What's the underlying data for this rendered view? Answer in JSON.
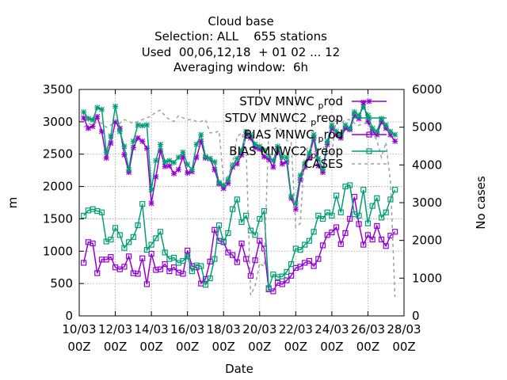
{
  "chart_data": {
    "type": "line",
    "title_lines": [
      "Cloud base",
      "Selection: ALL    655 stations",
      "Used  00,06,12,18  + 01 02 ... 12",
      "Averaging window:  6h"
    ],
    "xlabel": "Date",
    "ylabel": "m",
    "y2label": "No cases",
    "ylim": [
      0,
      3500
    ],
    "y2lim": [
      0,
      6000
    ],
    "yticks": [
      "0",
      "500",
      "1000",
      "1500",
      "2000",
      "2500",
      "3000",
      "3500"
    ],
    "y2ticks": [
      "0",
      "1000",
      "2000",
      "3000",
      "4000",
      "5000",
      "6000"
    ],
    "xlim": [
      0,
      36
    ],
    "xticks": [
      {
        "line1": "10/03",
        "line2": "00Z"
      },
      {
        "line1": "12/03",
        "line2": "00Z"
      },
      {
        "line1": "14/03",
        "line2": "00Z"
      },
      {
        "line1": "16/03",
        "line2": "00Z"
      },
      {
        "line1": "18/03",
        "line2": "00Z"
      },
      {
        "line1": "20/03",
        "line2": "00Z"
      },
      {
        "line1": "22/03",
        "line2": "00Z"
      },
      {
        "line1": "24/03",
        "line2": "00Z"
      },
      {
        "line1": "26/03",
        "line2": "00Z"
      },
      {
        "line1": "28/03",
        "line2": "00Z"
      }
    ],
    "x": [
      0.5,
      1,
      1.5,
      2,
      2.5,
      3,
      3.5,
      4,
      4.5,
      5,
      5.5,
      6,
      6.5,
      7,
      7.5,
      8,
      8.5,
      9,
      9.5,
      10,
      10.5,
      11,
      11.5,
      12,
      12.5,
      13,
      13.5,
      14,
      14.5,
      15,
      15.5,
      16,
      16.5,
      17,
      17.5,
      18,
      18.5,
      19,
      19.5,
      20,
      20.5,
      21,
      21.5,
      22,
      22.5,
      23,
      23.5,
      24,
      24.5,
      25,
      25.5,
      26,
      26.5,
      27,
      27.5,
      28,
      28.5,
      29,
      29.5,
      30,
      30.5,
      31,
      31.5,
      32,
      32.5,
      33,
      33.5,
      34,
      34.5,
      35
    ],
    "series": [
      {
        "name": "STDV MNWC",
        "sub": "p",
        "suffix": "rod",
        "color": "#9400d3",
        "marker": "star",
        "axis": "y1",
        "values": [
          3060,
          2900,
          2930,
          3080,
          2850,
          2440,
          2670,
          3000,
          2900,
          2490,
          2220,
          2600,
          2750,
          2700,
          2590,
          1740,
          2150,
          2550,
          2310,
          2320,
          2200,
          2260,
          2460,
          2210,
          2230,
          2450,
          2700,
          2440,
          2430,
          2260,
          2040,
          1970,
          2050,
          2300,
          2350,
          2490,
          2800,
          2750,
          2600,
          2580,
          2460,
          2420,
          2300,
          2580,
          2350,
          2380,
          1820,
          1650,
          2100,
          2300,
          2450,
          2750,
          2320,
          2220,
          2650,
          2900,
          2800,
          2750,
          2900,
          2880,
          3100,
          3050,
          3300,
          3000,
          2850,
          2800,
          3000,
          2900,
          2800,
          2700
        ]
      },
      {
        "name": "STDV MNWC2",
        "sub": "p",
        "suffix": "reop",
        "color": "#009e73",
        "marker": "star",
        "axis": "y1",
        "values": [
          3150,
          3050,
          3030,
          3220,
          3190,
          2530,
          2780,
          3240,
          2850,
          2620,
          2260,
          2700,
          2950,
          2940,
          2950,
          1950,
          2400,
          2650,
          2380,
          2400,
          2370,
          2450,
          2530,
          2340,
          2260,
          2650,
          2800,
          2460,
          2430,
          2380,
          2060,
          2020,
          2100,
          2330,
          2430,
          2560,
          2850,
          2800,
          2650,
          2620,
          2560,
          2470,
          2400,
          2620,
          2450,
          2450,
          1850,
          1740,
          2170,
          2350,
          2520,
          2800,
          2430,
          2270,
          2700,
          2950,
          2850,
          2800,
          2950,
          2900,
          3150,
          3100,
          3230,
          3100,
          2900,
          2850,
          3050,
          2950,
          2850,
          2800
        ]
      },
      {
        "name": "BIAS MNWC",
        "sub": "p",
        "suffix": "rod",
        "color": "#9400d3",
        "marker": "square",
        "axis": "y1",
        "values": [
          820,
          1140,
          1120,
          660,
          870,
          870,
          910,
          750,
          720,
          760,
          920,
          660,
          650,
          890,
          490,
          960,
          710,
          720,
          800,
          690,
          750,
          670,
          650,
          1010,
          770,
          750,
          500,
          570,
          840,
          1330,
          1160,
          1140,
          980,
          940,
          830,
          1120,
          880,
          620,
          860,
          1160,
          1040,
          410,
          380,
          510,
          490,
          550,
          620,
          740,
          760,
          820,
          850,
          770,
          880,
          1090,
          1250,
          1290,
          1370,
          1110,
          1280,
          1500,
          1840,
          1420,
          1100,
          1250,
          1180,
          1390,
          1180,
          1080,
          1240,
          1300
        ]
      },
      {
        "name": "BIAS MNWC2",
        "sub": "p",
        "suffix": "reop",
        "color": "#009e73",
        "marker": "square",
        "axis": "y1",
        "values": [
          1550,
          1630,
          1650,
          1620,
          1600,
          1150,
          1180,
          1360,
          1250,
          1050,
          1140,
          1220,
          1400,
          1730,
          1020,
          1100,
          1200,
          1300,
          980,
          880,
          900,
          820,
          850,
          920,
          690,
          780,
          770,
          480,
          580,
          880,
          1400,
          1150,
          1280,
          1650,
          1800,
          1450,
          1550,
          1320,
          1250,
          1500,
          1620,
          430,
          640,
          600,
          610,
          680,
          800,
          1040,
          1020,
          1100,
          1160,
          1300,
          1550,
          1500,
          1600,
          1550,
          1860,
          1600,
          2000,
          2020,
          1570,
          1550,
          1950,
          1430,
          1700,
          1820,
          1520,
          1600,
          1800,
          1950
        ]
      },
      {
        "name": "CASES",
        "sub": "",
        "suffix": "",
        "color": "#a0a0a0",
        "marker": "none",
        "axis": "y2",
        "dashed": true,
        "values": [
          5000,
          5100,
          5050,
          5150,
          5100,
          5000,
          5050,
          5200,
          5100,
          5200,
          5150,
          5100,
          5150,
          5200,
          5250,
          5300,
          5400,
          5450,
          5300,
          5200,
          5150,
          5300,
          5250,
          5200,
          5200,
          5150,
          5150,
          5200,
          4850,
          4850,
          4900,
          3600,
          3700,
          4050,
          4750,
          4850,
          4450,
          550,
          800,
          1400,
          1300,
          4900,
          4950,
          5000,
          4900,
          4650,
          4600,
          2350,
          2450,
          4350,
          4500,
          4350,
          4350,
          4500,
          4300,
          4300,
          5250,
          5100,
          5200,
          5200,
          5100,
          5050,
          5100,
          5100,
          4850,
          4650,
          4200,
          4600,
          3550,
          500
        ]
      }
    ]
  }
}
